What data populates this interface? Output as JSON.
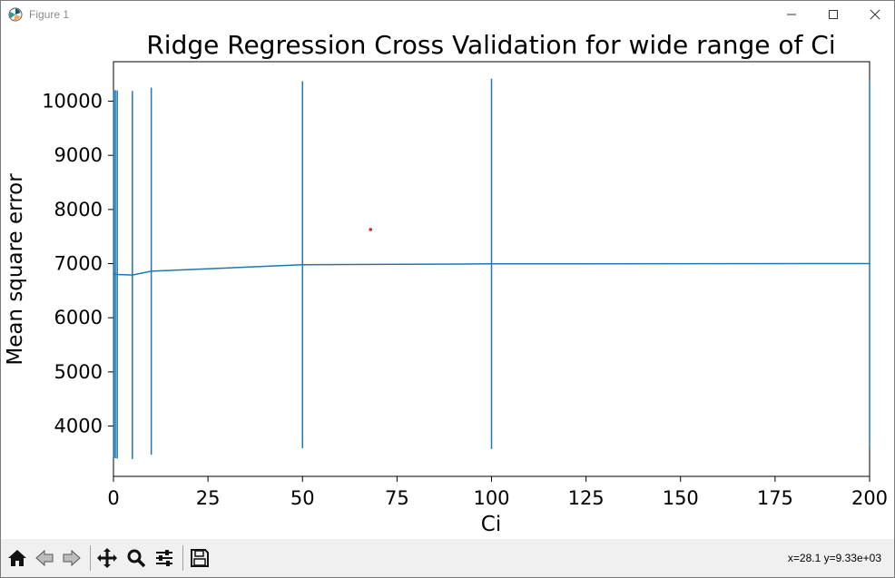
{
  "window": {
    "title": "Figure 1",
    "icons": {
      "app": "matplotlib-figure-icon",
      "minimize": "minimize-icon",
      "maximize": "maximize-icon",
      "close": "close-icon"
    }
  },
  "toolbar": {
    "buttons": [
      {
        "name": "home-button",
        "icon": "home-icon"
      },
      {
        "name": "back-button",
        "icon": "back-arrow-icon"
      },
      {
        "name": "forward-button",
        "icon": "forward-arrow-icon"
      },
      {
        "name": "pan-button",
        "icon": "move-icon"
      },
      {
        "name": "zoom-button",
        "icon": "magnifier-icon"
      },
      {
        "name": "configure-subplots-button",
        "icon": "sliders-icon"
      },
      {
        "name": "save-button",
        "icon": "floppy-disk-icon"
      }
    ],
    "coordinates": "x=28.1 y=9.33e+03"
  },
  "chart_data": {
    "type": "line",
    "title": "Ridge Regression Cross Validation for wide range of Ci",
    "xlabel": "Ci",
    "ylabel": "Mean square error",
    "xlim": [
      0,
      200
    ],
    "ylim": [
      3070,
      10730
    ],
    "xticks": [
      0,
      25,
      50,
      75,
      100,
      125,
      150,
      175,
      200
    ],
    "yticks": [
      4000,
      5000,
      6000,
      7000,
      8000,
      9000,
      10000
    ],
    "grid": false,
    "color": "#1f77b4",
    "series": [
      {
        "x": [
          0.1,
          0.5,
          1,
          5,
          10,
          50,
          100,
          200
        ],
        "y": [
          6810,
          6805,
          6800,
          6790,
          6860,
          6980,
          6995,
          7000
        ],
        "error": [
          3400,
          3400,
          3400,
          3400,
          3390,
          3390,
          3420,
          3400
        ]
      }
    ],
    "marker_point": {
      "x": 68,
      "y": 7630,
      "color": "#d62728"
    }
  }
}
